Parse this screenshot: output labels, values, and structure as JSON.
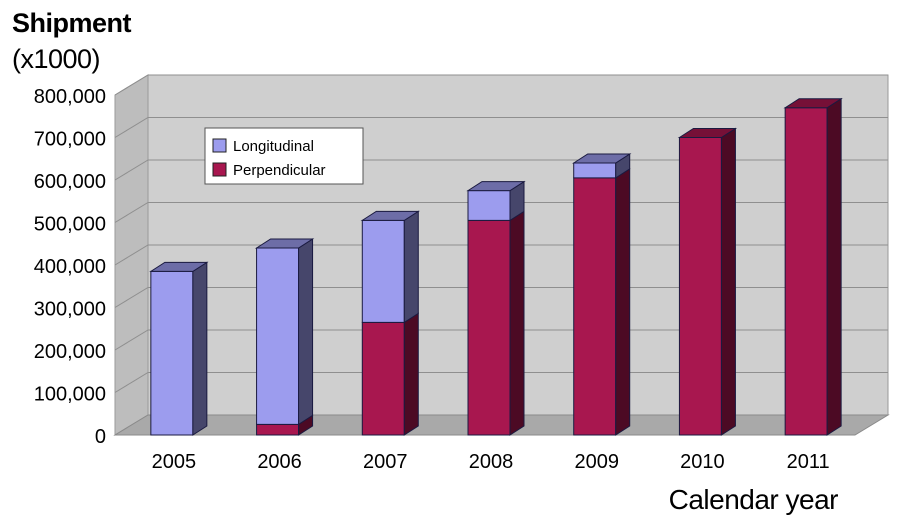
{
  "chart_data": {
    "type": "bar",
    "stacked": true,
    "three_d": true,
    "ylabel": [
      "Shipment",
      "(x1000)"
    ],
    "xlabel": "Calendar year",
    "categories": [
      "2005",
      "2006",
      "2007",
      "2008",
      "2009",
      "2010",
      "2011"
    ],
    "series": [
      {
        "name": "Perpendicular",
        "color": "#a8174f",
        "values": [
          0,
          25000,
          265000,
          505000,
          605000,
          700000,
          770000
        ]
      },
      {
        "name": "Longitudinal",
        "color": "#9c9cee",
        "values": [
          385000,
          415000,
          240000,
          70000,
          35000,
          0,
          0
        ]
      }
    ],
    "ylim": [
      0,
      800000
    ],
    "yticks": [
      "0",
      "100,000",
      "200,000",
      "300,000",
      "400,000",
      "500,000",
      "600,000",
      "700,000",
      "800,000"
    ],
    "legend": [
      "Longitudinal",
      "Perpendicular"
    ],
    "legend_position": "top-left",
    "grid": true
  }
}
